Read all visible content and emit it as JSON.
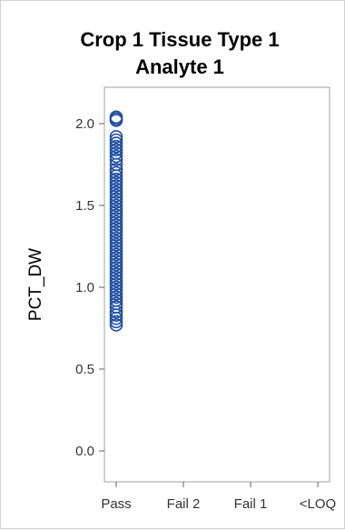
{
  "chart_data": {
    "type": "scatter",
    "title": [
      "Crop 1 Tissue Type 1",
      "Analyte 1"
    ],
    "xlabel": "",
    "ylabel": "PCT_DW",
    "categories": [
      "Pass",
      "Fail 2",
      "Fail 1",
      "<LOQ"
    ],
    "ylim": [
      -0.2,
      2.2
    ],
    "yticks": [
      0.0,
      0.5,
      1.0,
      1.5,
      2.0
    ],
    "ytick_labels": [
      "0.0",
      "0.5",
      "1.0",
      "1.5",
      "2.0"
    ],
    "grid": false,
    "marker": "open-circle",
    "series": [
      {
        "category": "Pass",
        "color": "#1f4ea3",
        "values": [
          2.04,
          2.03,
          2.02,
          1.92,
          1.9,
          1.88,
          1.86,
          1.84,
          1.82,
          1.8,
          1.78,
          1.75,
          1.72,
          1.7,
          1.68,
          1.66,
          1.64,
          1.62,
          1.6,
          1.58,
          1.56,
          1.54,
          1.52,
          1.5,
          1.48,
          1.46,
          1.44,
          1.42,
          1.4,
          1.38,
          1.36,
          1.34,
          1.32,
          1.3,
          1.28,
          1.26,
          1.24,
          1.22,
          1.2,
          1.18,
          1.16,
          1.14,
          1.12,
          1.1,
          1.08,
          1.06,
          1.04,
          1.02,
          1.0,
          0.98,
          0.96,
          0.94,
          0.92,
          0.9,
          0.88,
          0.85,
          0.83,
          0.81,
          0.79,
          0.77
        ]
      }
    ]
  }
}
